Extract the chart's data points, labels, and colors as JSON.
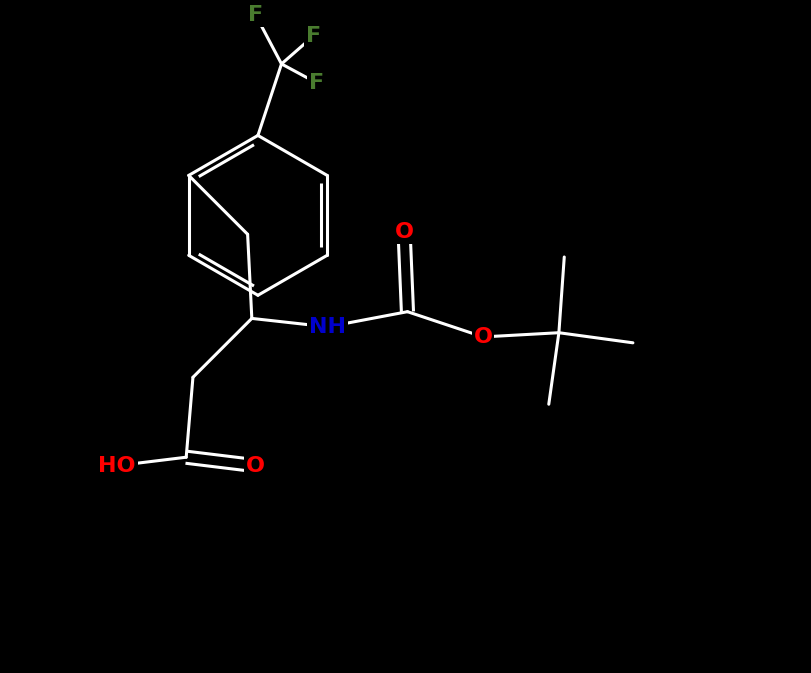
{
  "background_color": "#000000",
  "bond_color": "#ffffff",
  "atom_colors": {
    "F": "#4a7c2f",
    "O": "#ff0000",
    "N": "#0000cd",
    "HO": "#ff0000",
    "NH": "#0000cd"
  },
  "font_size": 16,
  "bond_width": 2.2,
  "figsize": [
    8.12,
    6.73
  ],
  "dpi": 100,
  "xlim": [
    -1,
    11
  ],
  "ylim": [
    -1,
    9
  ]
}
